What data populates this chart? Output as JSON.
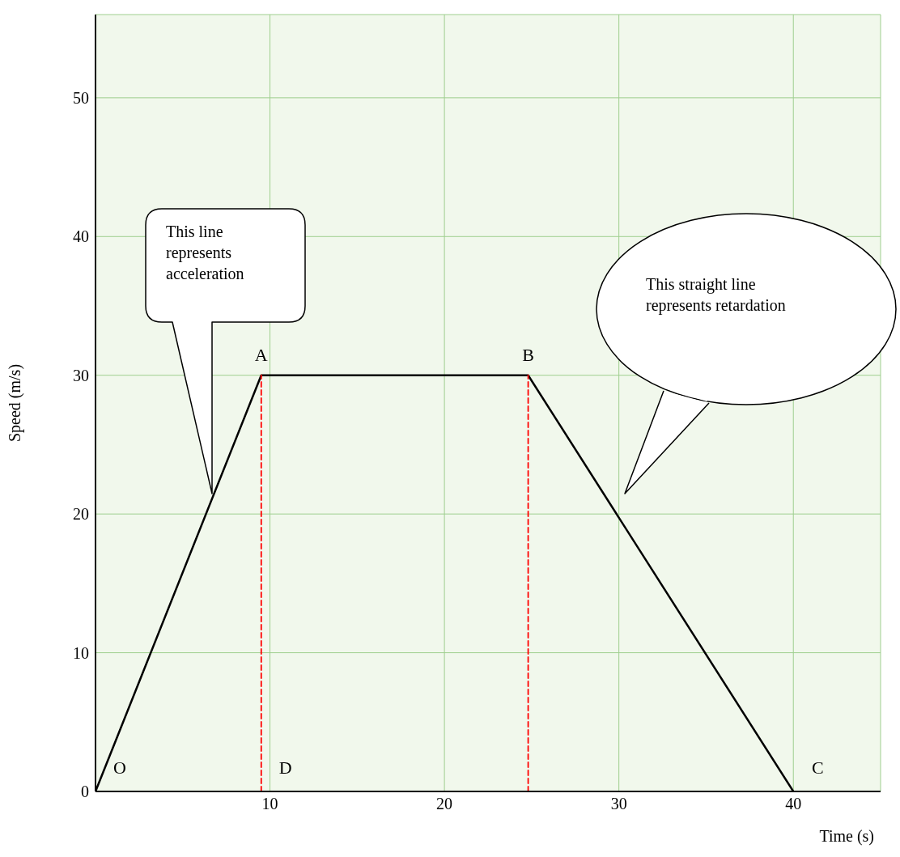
{
  "chart_data": {
    "type": "line",
    "xlabel": "Time (s)",
    "ylabel": "Speed (m/s)",
    "xlim": [
      0,
      45
    ],
    "xticks": [
      10,
      20,
      30,
      40
    ],
    "ylim": [
      0,
      56
    ],
    "yticks": [
      0,
      10,
      20,
      30,
      40,
      50
    ],
    "grid": true,
    "series": [
      {
        "color": "#000000",
        "x": [
          0,
          9.5,
          24.8,
          40
        ],
        "values": [
          0,
          30,
          30,
          0
        ],
        "line_style": "solid"
      },
      {
        "color": "#ff0000",
        "x": [
          9.5,
          9.5
        ],
        "values": [
          0,
          30
        ],
        "line_style": "dashed"
      },
      {
        "color": "#ff0000",
        "x": [
          24.8,
          24.8
        ],
        "values": [
          0,
          30
        ],
        "line_style": "dashed"
      }
    ],
    "annotations": [
      {
        "text": "O",
        "x": 0,
        "y": 0
      },
      {
        "text": "A",
        "x": 9.5,
        "y": 30
      },
      {
        "text": "B",
        "x": 24.8,
        "y": 30
      },
      {
        "text": "C",
        "x": 40,
        "y": 0
      },
      {
        "text": "D",
        "x": 9.5,
        "y": 0
      },
      "This line represents acceleration",
      "This straight line represents retardation"
    ]
  }
}
